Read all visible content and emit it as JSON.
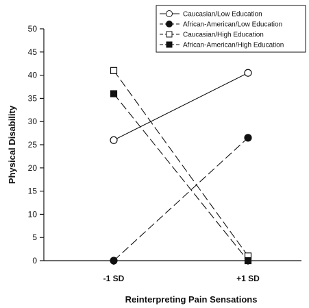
{
  "chart_data": {
    "type": "line",
    "categories": [
      "-1 SD",
      "+1 SD"
    ],
    "xlabel": "Reinterpreting Pain Sensations",
    "ylabel": "Physical Disability",
    "ylim": [
      0,
      50
    ],
    "yticks": [
      0,
      5,
      10,
      15,
      20,
      25,
      30,
      35,
      40,
      45,
      50
    ],
    "grid": false,
    "legend_position": "top-right",
    "series": [
      {
        "name": "Caucasian/Low Education",
        "values": [
          26,
          40.5
        ],
        "line": "solid",
        "marker": "circle",
        "filled": false
      },
      {
        "name": "African-American/Low Education",
        "values": [
          0,
          26.5
        ],
        "line": "dashed",
        "marker": "circle",
        "filled": true
      },
      {
        "name": "Caucasian/High Education",
        "values": [
          41,
          1
        ],
        "line": "dashed",
        "marker": "square",
        "filled": false
      },
      {
        "name": "African-American/High Education",
        "values": [
          36,
          0
        ],
        "line": "dashed",
        "marker": "square",
        "filled": true
      }
    ]
  }
}
